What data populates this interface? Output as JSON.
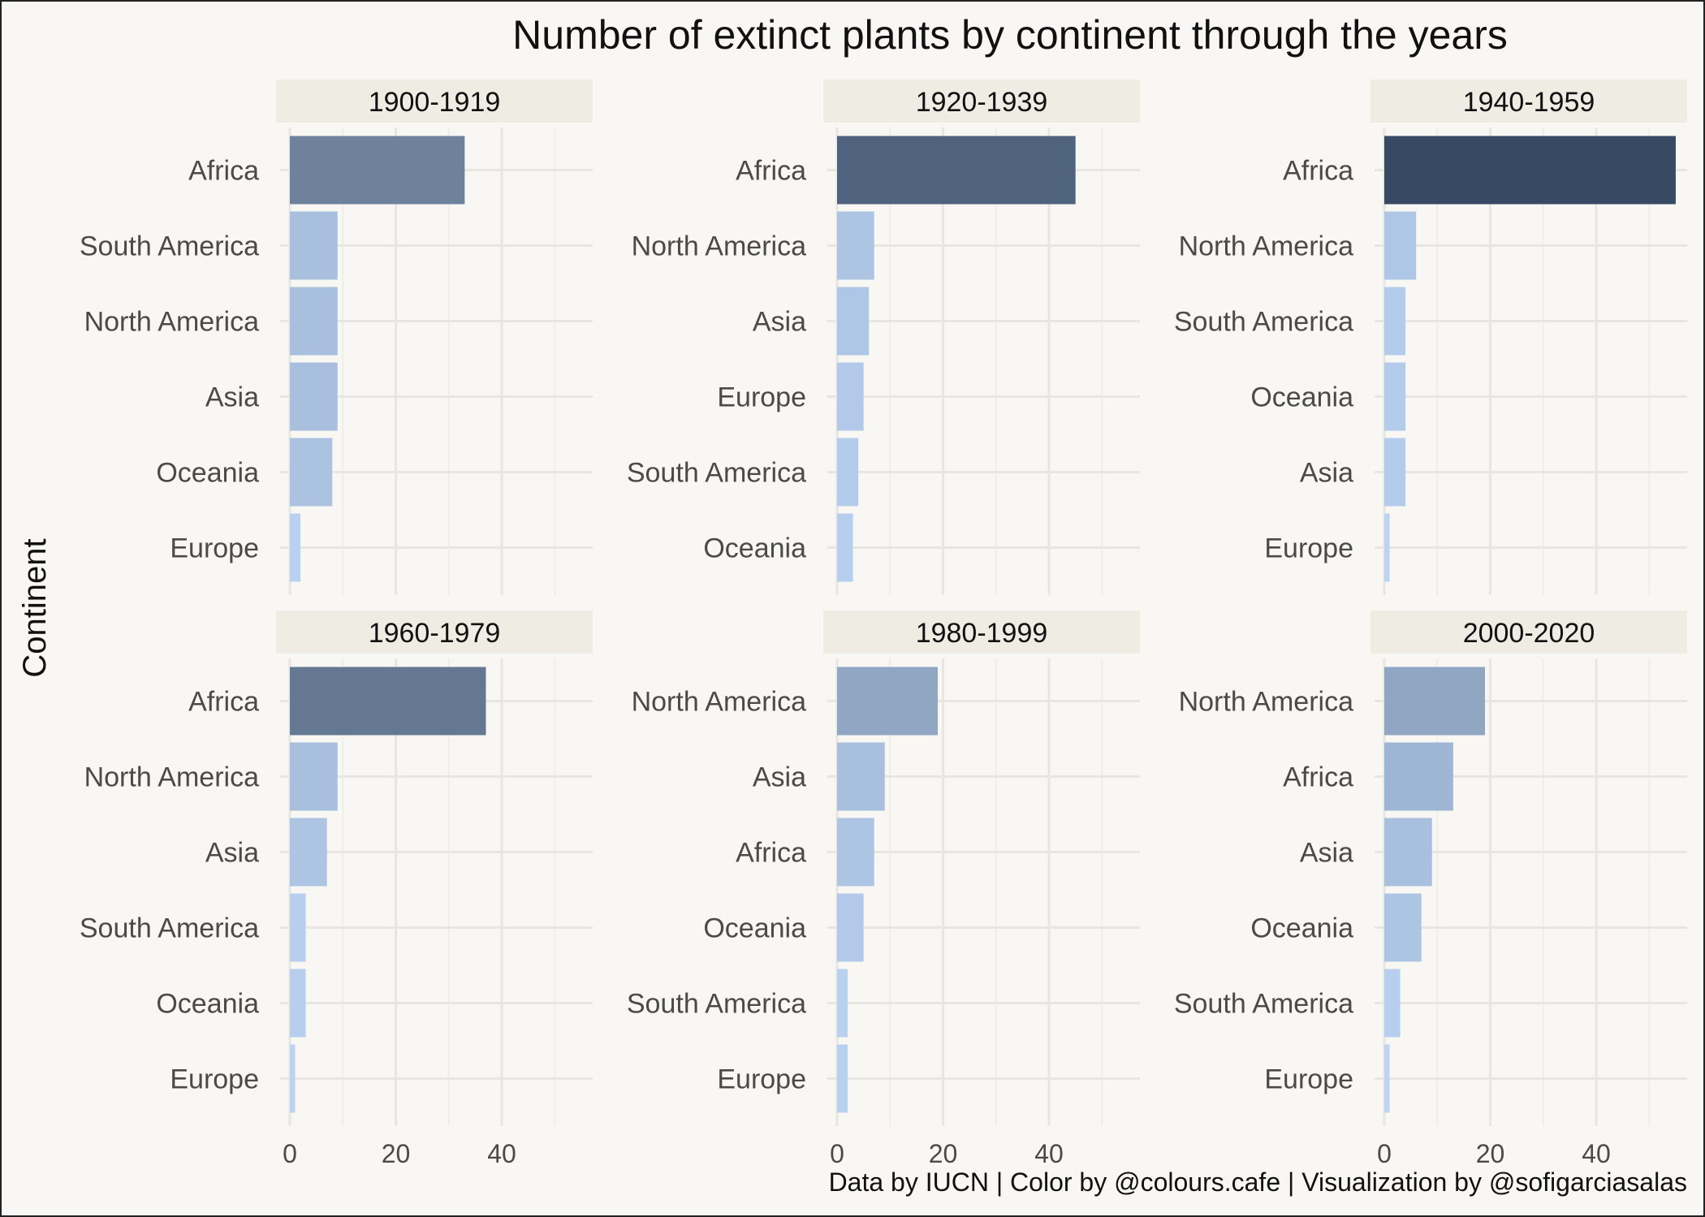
{
  "chart_data": {
    "type": "bar",
    "orientation": "horizontal",
    "title": "Number of extinct plants by continent through the years",
    "ylabel": "Continent",
    "xlabel": "",
    "caption": "Data by IUCN | Color by @colours.cafe | Visualization by @sofigarciasalas",
    "xlim": [
      0,
      57
    ],
    "xticks": [
      0,
      20,
      40
    ],
    "grid": true,
    "legend": "none",
    "color_scale": {
      "low": "#bed6f6",
      "high": "#384a63"
    },
    "facets": [
      {
        "label": "1900-1919",
        "categories": [
          "Africa",
          "South America",
          "North America",
          "Asia",
          "Oceania",
          "Europe"
        ],
        "values": [
          33,
          9,
          9,
          9,
          8,
          2
        ]
      },
      {
        "label": "1920-1939",
        "categories": [
          "Africa",
          "North America",
          "Asia",
          "Europe",
          "South America",
          "Oceania"
        ],
        "values": [
          45,
          7,
          6,
          5,
          4,
          3
        ]
      },
      {
        "label": "1940-1959",
        "categories": [
          "Africa",
          "North America",
          "South America",
          "Oceania",
          "Asia",
          "Europe"
        ],
        "values": [
          55,
          6,
          4,
          4,
          4,
          1
        ]
      },
      {
        "label": "1960-1979",
        "categories": [
          "Africa",
          "North America",
          "Asia",
          "South America",
          "Oceania",
          "Europe"
        ],
        "values": [
          37,
          9,
          7,
          3,
          3,
          1
        ]
      },
      {
        "label": "1980-1999",
        "categories": [
          "North America",
          "Asia",
          "Africa",
          "Oceania",
          "South America",
          "Europe"
        ],
        "values": [
          19,
          9,
          7,
          5,
          2,
          2
        ]
      },
      {
        "label": "2000-2020",
        "categories": [
          "North America",
          "Africa",
          "Asia",
          "Oceania",
          "South America",
          "Europe"
        ],
        "values": [
          19,
          13,
          9,
          7,
          3,
          1
        ]
      }
    ]
  }
}
